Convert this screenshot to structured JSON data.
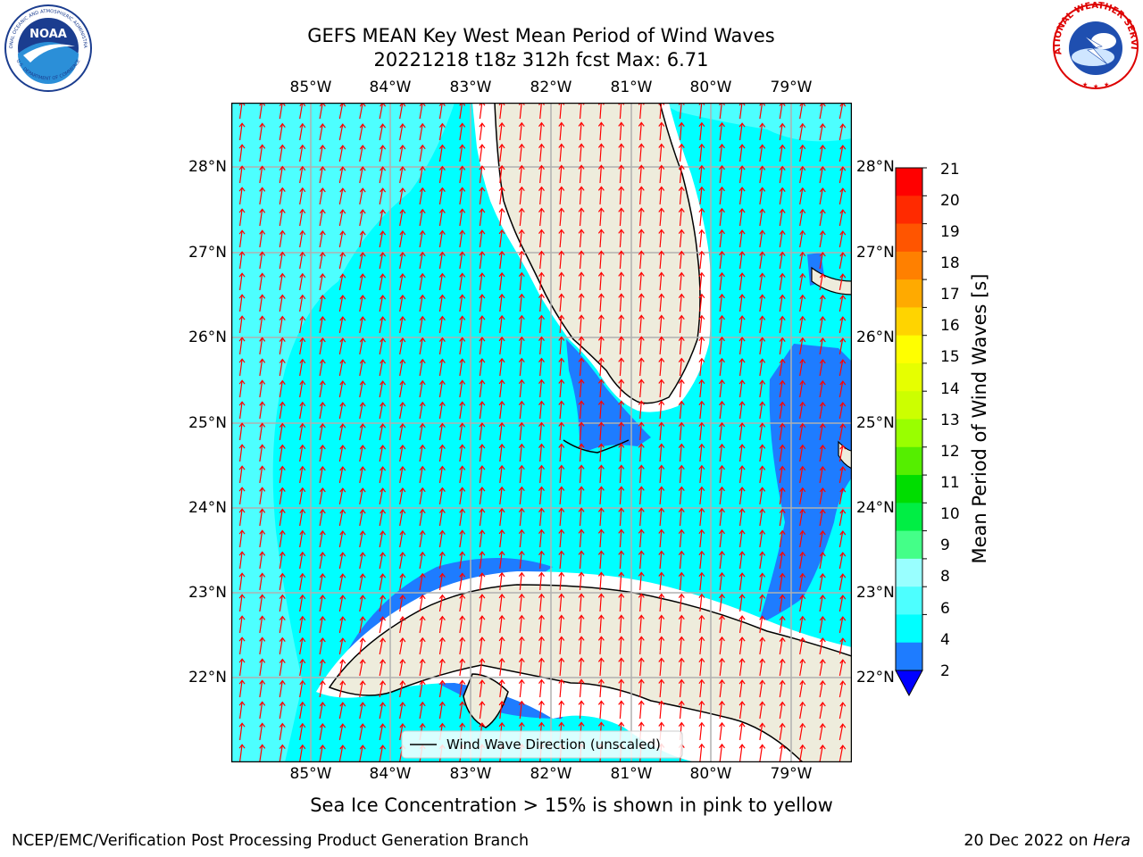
{
  "header": {
    "title_line1": "GEFS MEAN Key West Mean Period of Wind Waves",
    "title_line2": "20221218 t18z 312h fcst   Max: 6.71"
  },
  "logos": {
    "noaa_text": "NOAA",
    "noaa_ring_top": "NATIONAL OCEANIC AND ATMOSPHERIC ADMINISTRATION",
    "noaa_ring_bottom": "U.S. DEPARTMENT OF COMMERCE",
    "nws_ring": "NATIONAL WEATHER SERVICE"
  },
  "map": {
    "lon_ticks": [
      "85°W",
      "84°W",
      "83°W",
      "82°W",
      "81°W",
      "80°W",
      "79°W"
    ],
    "lat_ticks": [
      "28°N",
      "27°N",
      "26°N",
      "25°N",
      "24°N",
      "23°N",
      "22°N"
    ],
    "legend_label": "Wind Wave Direction (unscaled)",
    "arrow_color": "#ff0000",
    "land_color": "#eeecdc",
    "ocean_colors": {
      "2-4": "#1e7cff",
      "4-6": "#00ffff",
      "6-8": "#4dffff",
      "below-2": "#0000ff"
    }
  },
  "colorbar": {
    "label": "Mean Period of Wind Waves [s]",
    "ticks": [
      "21",
      "20",
      "19",
      "18",
      "17",
      "16",
      "15",
      "14",
      "13",
      "12",
      "11",
      "10",
      "9",
      "8",
      "6",
      "4",
      "2"
    ],
    "colors": [
      "#ff0000",
      "#ff2a00",
      "#ff5500",
      "#ff8000",
      "#ffaa00",
      "#ffd400",
      "#ffff00",
      "#e6ff00",
      "#ccff00",
      "#99ff00",
      "#55ee00",
      "#00dd00",
      "#00ee44",
      "#44ff88",
      "#99ffff",
      "#4dffff",
      "#00ffff",
      "#1e7cff"
    ],
    "under_color": "#0000ff"
  },
  "footer": {
    "note": "Sea Ice Concentration > 15% is shown in pink to yellow",
    "credit": "NCEP/EMC/Verification Post Processing Product Generation Branch",
    "date": "20 Dec 2022 on ",
    "host": "Hera"
  }
}
